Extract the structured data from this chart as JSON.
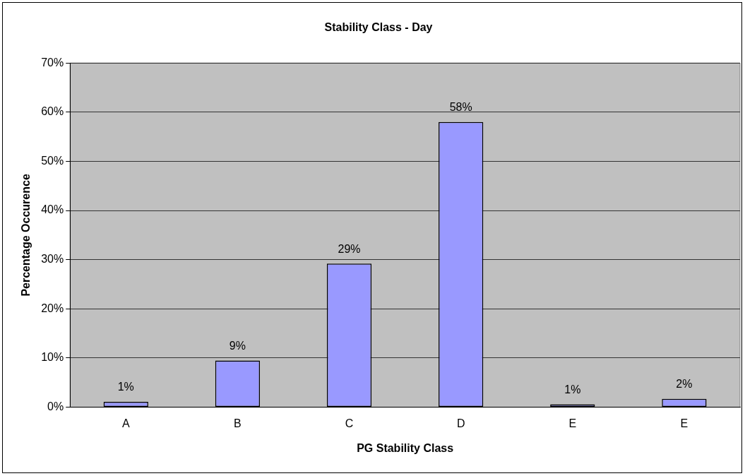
{
  "chart_data": {
    "type": "bar",
    "title": "Stability Class - Day",
    "xlabel": "PG Stability Class",
    "ylabel": "Percentage Occurence",
    "categories": [
      "A",
      "B",
      "C",
      "D",
      "E",
      "E"
    ],
    "values": [
      1.1,
      9.5,
      29.2,
      58,
      0.6,
      1.7
    ],
    "value_labels": [
      "1%",
      "9%",
      "29%",
      "58%",
      "1%",
      "2%"
    ],
    "color": "#9999ff",
    "ylim": [
      0,
      70
    ],
    "yticks": [
      {
        "value": 0,
        "label": "0%"
      },
      {
        "value": 10,
        "label": "10%"
      },
      {
        "value": 20,
        "label": "20%"
      },
      {
        "value": 30,
        "label": "30%"
      },
      {
        "value": 40,
        "label": "40%"
      },
      {
        "value": 50,
        "label": "50%"
      },
      {
        "value": 60,
        "label": "60%"
      },
      {
        "value": 70,
        "label": "70%"
      }
    ],
    "grid": "y",
    "legend": false
  }
}
